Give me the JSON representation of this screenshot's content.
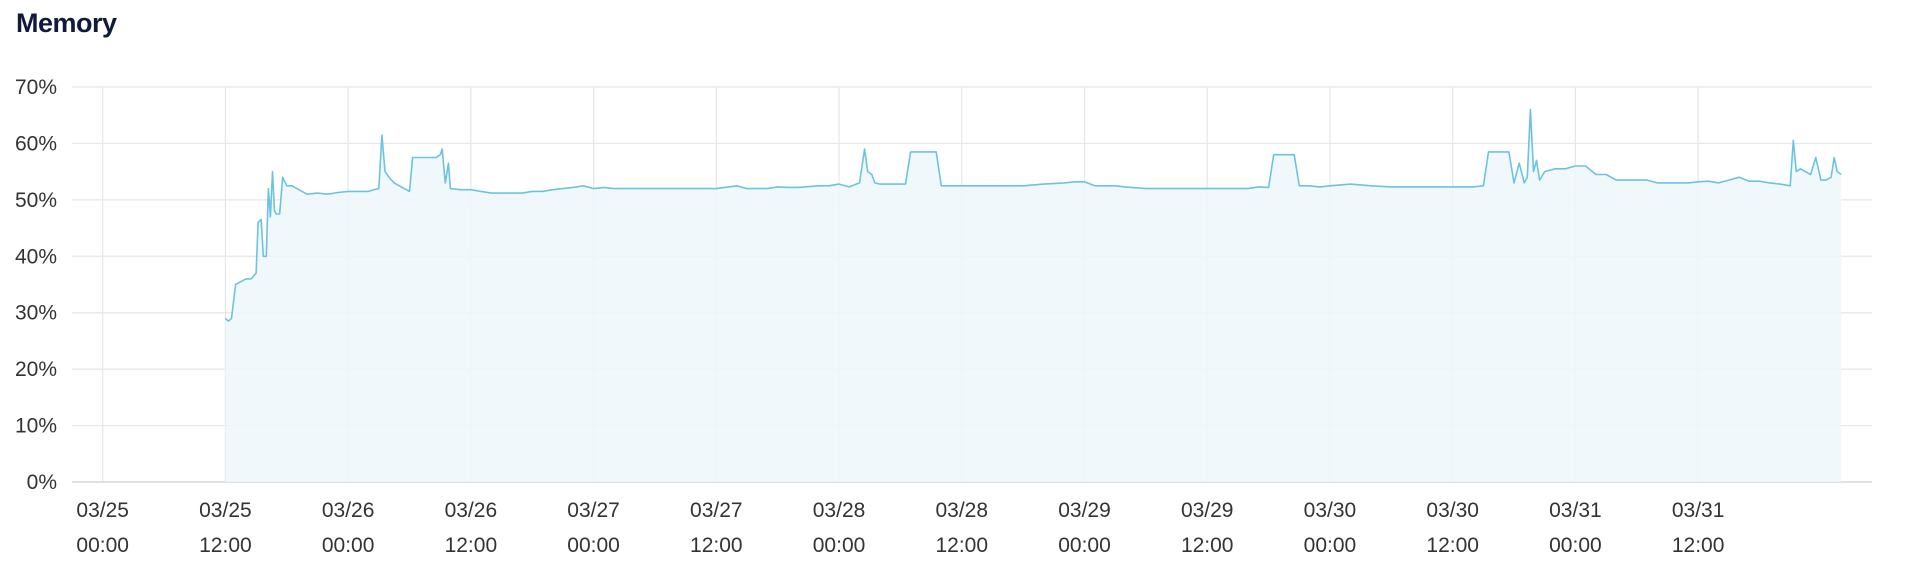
{
  "panel": {
    "title": "Memory"
  },
  "chart_data": {
    "type": "area",
    "title": "Memory",
    "ylim": [
      0,
      70
    ],
    "y_ticks": [
      "0%",
      "10%",
      "20%",
      "30%",
      "40%",
      "50%",
      "60%",
      "70%"
    ],
    "y_tick_values": [
      0,
      10,
      20,
      30,
      40,
      50,
      60,
      70
    ],
    "x_ticks": [
      {
        "date": "03/25",
        "time": "00:00"
      },
      {
        "date": "03/25",
        "time": "12:00"
      },
      {
        "date": "03/26",
        "time": "00:00"
      },
      {
        "date": "03/26",
        "time": "12:00"
      },
      {
        "date": "03/27",
        "time": "00:00"
      },
      {
        "date": "03/27",
        "time": "12:00"
      },
      {
        "date": "03/28",
        "time": "00:00"
      },
      {
        "date": "03/28",
        "time": "12:00"
      },
      {
        "date": "03/29",
        "time": "00:00"
      },
      {
        "date": "03/29",
        "time": "12:00"
      },
      {
        "date": "03/30",
        "time": "00:00"
      },
      {
        "date": "03/30",
        "time": "12:00"
      },
      {
        "date": "03/31",
        "time": "00:00"
      },
      {
        "date": "03/31",
        "time": "12:00"
      }
    ],
    "xlim_hours": [
      -3,
      173
    ],
    "x_unit": "hours since 03/25 00:00",
    "grid": true,
    "colors": {
      "line": "#6cc3e0",
      "fill": "#eef7fb",
      "grid": "#e4e6ea"
    },
    "series": [
      {
        "values": [
          [
            12,
            29
          ],
          [
            12.3,
            28.5
          ],
          [
            12.6,
            29
          ],
          [
            13,
            35
          ],
          [
            13.5,
            35.5
          ],
          [
            14,
            36
          ],
          [
            14.5,
            36
          ],
          [
            15,
            37
          ],
          [
            15.2,
            46
          ],
          [
            15.5,
            46.5
          ],
          [
            15.7,
            40
          ],
          [
            16,
            40
          ],
          [
            16.2,
            52
          ],
          [
            16.4,
            47
          ],
          [
            16.6,
            55
          ],
          [
            16.8,
            48
          ],
          [
            17,
            47.5
          ],
          [
            17.3,
            47.5
          ],
          [
            17.6,
            54
          ],
          [
            18,
            52.5
          ],
          [
            18.5,
            52.5
          ],
          [
            19,
            52
          ],
          [
            19.5,
            51.5
          ],
          [
            20,
            51
          ],
          [
            21,
            51.2
          ],
          [
            22,
            51
          ],
          [
            23,
            51.3
          ],
          [
            24,
            51.5
          ],
          [
            25,
            51.5
          ],
          [
            26,
            51.5
          ],
          [
            26.5,
            51.8
          ],
          [
            27,
            52
          ],
          [
            27.3,
            61.5
          ],
          [
            27.6,
            55
          ],
          [
            28,
            54
          ],
          [
            28.5,
            53
          ],
          [
            29,
            52.5
          ],
          [
            29.5,
            52
          ],
          [
            30,
            51.5
          ],
          [
            30.3,
            57.5
          ],
          [
            31,
            57.5
          ],
          [
            32,
            57.5
          ],
          [
            32.6,
            57.5
          ],
          [
            33,
            58
          ],
          [
            33.2,
            59
          ],
          [
            33.5,
            53
          ],
          [
            33.8,
            56.5
          ],
          [
            34,
            52
          ],
          [
            35,
            51.8
          ],
          [
            36,
            51.8
          ],
          [
            37,
            51.5
          ],
          [
            38,
            51.2
          ],
          [
            39,
            51.2
          ],
          [
            40,
            51.2
          ],
          [
            41,
            51.2
          ],
          [
            42,
            51.5
          ],
          [
            43,
            51.5
          ],
          [
            44,
            51.8
          ],
          [
            45,
            52
          ],
          [
            46,
            52.2
          ],
          [
            47,
            52.5
          ],
          [
            48,
            52
          ],
          [
            49,
            52.2
          ],
          [
            50,
            52
          ],
          [
            52,
            52
          ],
          [
            54,
            52
          ],
          [
            56,
            52
          ],
          [
            58,
            52
          ],
          [
            60,
            52
          ],
          [
            62,
            52.5
          ],
          [
            63,
            52
          ],
          [
            65,
            52
          ],
          [
            66,
            52.3
          ],
          [
            67,
            52.2
          ],
          [
            68,
            52.2
          ],
          [
            70,
            52.5
          ],
          [
            71,
            52.5
          ],
          [
            72,
            52.8
          ],
          [
            73,
            52.3
          ],
          [
            74,
            53
          ],
          [
            74.5,
            59
          ],
          [
            74.8,
            55
          ],
          [
            75.2,
            54.5
          ],
          [
            75.5,
            53
          ],
          [
            76,
            52.8
          ],
          [
            77,
            52.8
          ],
          [
            78,
            52.8
          ],
          [
            78.5,
            52.8
          ],
          [
            79,
            58.5
          ],
          [
            80,
            58.5
          ],
          [
            81,
            58.5
          ],
          [
            81.5,
            58.5
          ],
          [
            82,
            52.5
          ],
          [
            83,
            52.5
          ],
          [
            84,
            52.5
          ],
          [
            86,
            52.5
          ],
          [
            88,
            52.5
          ],
          [
            90,
            52.5
          ],
          [
            92,
            52.8
          ],
          [
            94,
            53
          ],
          [
            95,
            53.2
          ],
          [
            96,
            53.2
          ],
          [
            97,
            52.5
          ],
          [
            98,
            52.5
          ],
          [
            99,
            52.5
          ],
          [
            100,
            52.3
          ],
          [
            102,
            52
          ],
          [
            104,
            52
          ],
          [
            106,
            52
          ],
          [
            108,
            52
          ],
          [
            110,
            52
          ],
          [
            112,
            52
          ],
          [
            113,
            52.3
          ],
          [
            114,
            52.2
          ],
          [
            114.5,
            58
          ],
          [
            115,
            58
          ],
          [
            116,
            58
          ],
          [
            116.5,
            58
          ],
          [
            117,
            52.5
          ],
          [
            118,
            52.5
          ],
          [
            119,
            52.3
          ],
          [
            120,
            52.5
          ],
          [
            122,
            52.8
          ],
          [
            124,
            52.5
          ],
          [
            126,
            52.3
          ],
          [
            128,
            52.3
          ],
          [
            130,
            52.3
          ],
          [
            132,
            52.3
          ],
          [
            134,
            52.3
          ],
          [
            135,
            52.5
          ],
          [
            135.5,
            58.5
          ],
          [
            136,
            58.5
          ],
          [
            137,
            58.5
          ],
          [
            137.5,
            58.5
          ],
          [
            138,
            53
          ],
          [
            138.5,
            56.5
          ],
          [
            139,
            53
          ],
          [
            139.3,
            54
          ],
          [
            139.6,
            66
          ],
          [
            139.9,
            55
          ],
          [
            140.2,
            57
          ],
          [
            140.5,
            53.5
          ],
          [
            141,
            55
          ],
          [
            142,
            55.5
          ],
          [
            143,
            55.5
          ],
          [
            144,
            56
          ],
          [
            145,
            56
          ],
          [
            146,
            54.5
          ],
          [
            147,
            54.5
          ],
          [
            148,
            53.5
          ],
          [
            149,
            53.5
          ],
          [
            150,
            53.5
          ],
          [
            151,
            53.5
          ],
          [
            152,
            53
          ],
          [
            153,
            53
          ],
          [
            154,
            53
          ],
          [
            155,
            53
          ],
          [
            156,
            53.2
          ],
          [
            157,
            53.3
          ],
          [
            158,
            53
          ],
          [
            159,
            53.5
          ],
          [
            160,
            54
          ],
          [
            161,
            53.3
          ],
          [
            162,
            53.3
          ],
          [
            163,
            53
          ],
          [
            164,
            52.8
          ],
          [
            165,
            52.5
          ],
          [
            165.3,
            60.5
          ],
          [
            165.6,
            55
          ],
          [
            166,
            55.5
          ],
          [
            167,
            54.5
          ],
          [
            167.5,
            57.5
          ],
          [
            168,
            53.5
          ],
          [
            168.5,
            53.5
          ],
          [
            169,
            54
          ],
          [
            169.3,
            57.5
          ],
          [
            169.6,
            55
          ],
          [
            170,
            54.5
          ]
        ]
      }
    ]
  }
}
